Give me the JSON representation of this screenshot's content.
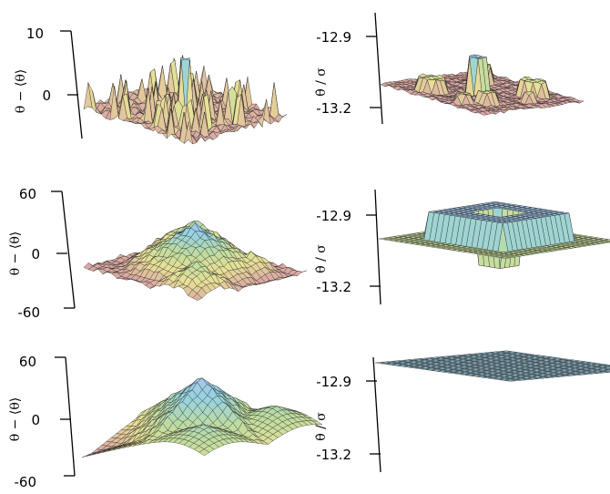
{
  "chart_data": [
    {
      "type": "surface",
      "ylabel": "θ − ⟨θ⟩",
      "ticks": [
        "10",
        "0"
      ],
      "tick_values": [
        10,
        0
      ],
      "ylim": [
        -7,
        15
      ],
      "shape": "rough"
    },
    {
      "type": "surface",
      "ylabel": "θ̇ / σ",
      "ticks": [
        "-12.9",
        "-13.2"
      ],
      "tick_values": [
        -12.9,
        -13.2
      ],
      "ylim": [
        -13.3,
        -12.85
      ],
      "shape": "plateaus"
    },
    {
      "type": "surface",
      "ylabel": "θ − ⟨θ⟩",
      "ticks": [
        "60",
        "0",
        "-60"
      ],
      "tick_values": [
        60,
        0,
        -60
      ],
      "ylim": [
        -60,
        60
      ],
      "shape": "multi-peak"
    },
    {
      "type": "surface",
      "ylabel": "θ̇ / σ",
      "ticks": [
        "-12.9",
        "-13.2"
      ],
      "tick_values": [
        -12.9,
        -13.2
      ],
      "ylim": [
        -13.3,
        -12.85
      ],
      "shape": "mesa"
    },
    {
      "type": "surface",
      "ylabel": "θ − ⟨θ⟩",
      "ticks": [
        "60",
        "0",
        "-60"
      ],
      "tick_values": [
        60,
        0,
        -60
      ],
      "ylim": [
        -60,
        60
      ],
      "shape": "pyramid"
    },
    {
      "type": "surface",
      "ylabel": "θ̇ / σ",
      "ticks": [
        "-12.9",
        "-13.2"
      ],
      "tick_values": [
        -12.9,
        -13.2
      ],
      "ylim": [
        -13.3,
        -12.85
      ],
      "shape": "flat"
    }
  ]
}
